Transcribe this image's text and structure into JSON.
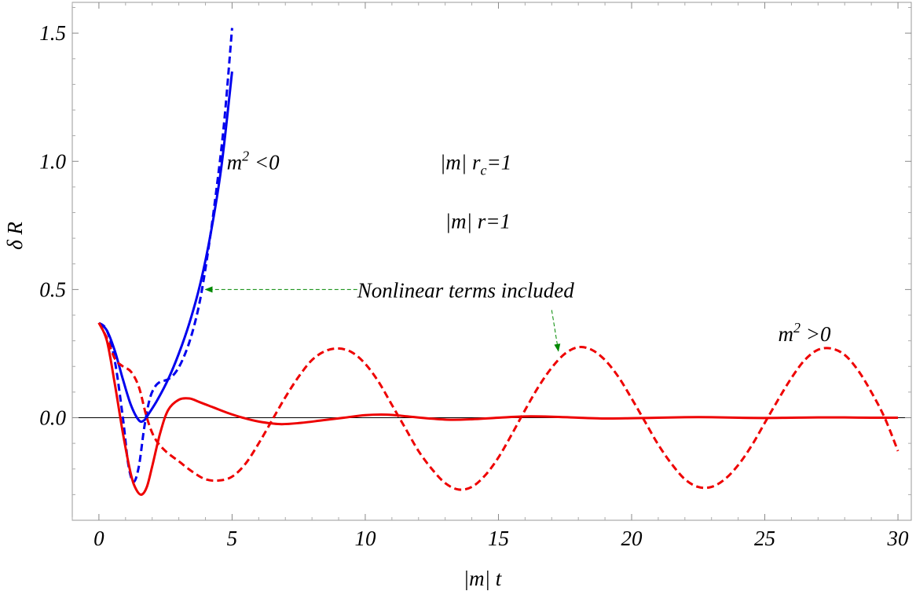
{
  "chart_data": {
    "type": "line",
    "xlabel": "|m| t",
    "ylabel": "δ R",
    "xlim": [
      -1,
      30.5
    ],
    "ylim": [
      -0.4,
      1.62
    ],
    "xticks": [
      0,
      5,
      10,
      15,
      20,
      25,
      30
    ],
    "xtick_labels": [
      "0",
      "5",
      "10",
      "15",
      "20",
      "25",
      "30"
    ],
    "yticks": [
      0.0,
      0.5,
      1.0,
      1.5
    ],
    "ytick_labels": [
      "0.0",
      "0.5",
      "1.0",
      "1.5"
    ],
    "grid": false,
    "zero_line": true,
    "series": [
      {
        "color": "#0000ee",
        "dash": "solid",
        "x": [
          0,
          0.3,
          0.6,
          0.9,
          1.2,
          1.5,
          1.7,
          1.9,
          2.2,
          2.6,
          3.0,
          3.4,
          3.8,
          4.2,
          4.6,
          5.0
        ],
        "y": [
          0.37,
          0.34,
          0.26,
          0.15,
          0.05,
          -0.01,
          -0.01,
          0.02,
          0.07,
          0.15,
          0.25,
          0.37,
          0.52,
          0.72,
          0.98,
          1.35
        ]
      },
      {
        "color": "#0000ee",
        "dash": "dashed",
        "x": [
          0,
          0.3,
          0.6,
          0.9,
          1.1,
          1.3,
          1.5,
          1.7,
          1.9,
          2.1,
          2.3,
          2.6,
          2.9,
          3.2,
          3.5,
          3.8,
          4.1,
          4.4,
          4.7,
          5.0
        ],
        "y": [
          0.37,
          0.34,
          0.22,
          0.0,
          -0.18,
          -0.25,
          -0.19,
          -0.04,
          0.07,
          0.12,
          0.14,
          0.15,
          0.18,
          0.24,
          0.33,
          0.46,
          0.65,
          0.88,
          1.15,
          1.52
        ]
      },
      {
        "color": "#ee0000",
        "dash": "solid",
        "x": [
          0,
          0.3,
          0.6,
          0.9,
          1.2,
          1.4,
          1.6,
          1.8,
          2.0,
          2.3,
          2.6,
          3.0,
          3.4,
          3.8,
          4.3,
          4.8,
          5.4,
          6.0,
          6.8,
          7.6,
          8.4,
          9.2,
          10.0,
          10.8,
          11.6,
          12.4,
          13.2,
          14.0,
          15.0,
          16.0,
          17.0,
          18.0,
          19.0,
          20.0,
          21.0,
          22.0,
          23.0,
          24.0,
          25.0,
          26.0,
          27.0,
          28.0,
          29.0,
          30.0
        ],
        "y": [
          0.37,
          0.3,
          0.13,
          -0.06,
          -0.22,
          -0.28,
          -0.3,
          -0.27,
          -0.19,
          -0.06,
          0.03,
          0.07,
          0.075,
          0.06,
          0.04,
          0.02,
          0.0,
          -0.015,
          -0.025,
          -0.02,
          -0.01,
          0.0,
          0.01,
          0.012,
          0.005,
          -0.003,
          -0.008,
          -0.006,
          0.0,
          0.005,
          0.004,
          0.0,
          -0.003,
          -0.002,
          0.0,
          0.002,
          0.002,
          0.0,
          -0.001,
          0.0,
          0.001,
          0.001,
          0.0,
          0.0
        ]
      },
      {
        "color": "#ee0000",
        "dash": "dashed",
        "x": [
          0,
          0.3,
          0.6,
          0.9,
          1.2,
          1.5,
          1.8,
          2.1,
          2.5,
          3.0,
          3.5,
          4.0,
          4.5,
          5.0,
          5.5,
          6.0,
          6.5,
          7.0,
          7.5,
          8.0,
          8.5,
          9.0,
          9.5,
          10.0,
          10.5,
          11.0,
          11.5,
          12.0,
          12.5,
          13.0,
          13.5,
          14.0,
          14.5,
          15.0,
          15.5,
          16.0,
          16.5,
          17.0,
          17.5,
          18.0,
          18.5,
          19.0,
          19.5,
          20.0,
          20.5,
          21.0,
          21.5,
          22.0,
          22.5,
          23.0,
          23.5,
          24.0,
          24.5,
          25.0,
          25.5,
          26.0,
          26.5,
          27.0,
          27.5,
          28.0,
          28.5,
          29.0,
          29.5,
          30.0
        ],
        "y": [
          0.37,
          0.31,
          0.23,
          0.2,
          0.18,
          0.12,
          0.0,
          -0.08,
          -0.13,
          -0.17,
          -0.21,
          -0.24,
          -0.245,
          -0.23,
          -0.18,
          -0.1,
          -0.01,
          0.08,
          0.16,
          0.225,
          0.26,
          0.27,
          0.255,
          0.21,
          0.14,
          0.05,
          -0.04,
          -0.13,
          -0.2,
          -0.255,
          -0.28,
          -0.27,
          -0.225,
          -0.155,
          -0.065,
          0.03,
          0.12,
          0.195,
          0.25,
          0.275,
          0.265,
          0.225,
          0.16,
          0.075,
          -0.015,
          -0.105,
          -0.18,
          -0.24,
          -0.27,
          -0.27,
          -0.24,
          -0.185,
          -0.11,
          -0.02,
          0.07,
          0.155,
          0.225,
          0.265,
          0.27,
          0.245,
          0.185,
          0.1,
          0.0,
          -0.13
        ]
      }
    ],
    "annotations": {
      "m2_neg": {
        "base": "m",
        "sup": "2",
        "rest": " <0",
        "at": [
          4.8,
          1.0
        ]
      },
      "m2_pos": {
        "base": "m",
        "sup": "2",
        "rest": " >0",
        "at": [
          25.5,
          0.33
        ]
      },
      "rc": {
        "pre": "|m| r",
        "sub": "c",
        "post": "=1",
        "at": [
          12.8,
          1.0
        ]
      },
      "r": {
        "text": "|m| r=1",
        "at": [
          13.0,
          0.77
        ]
      },
      "nonlinear": {
        "text": "Nonlinear terms included",
        "at": [
          9.7,
          0.5
        ]
      }
    },
    "arrows": [
      {
        "from": [
          9.7,
          0.5
        ],
        "to": [
          4.0,
          0.5
        ],
        "color": "#008800"
      },
      {
        "from": [
          17.0,
          0.42
        ],
        "to": [
          17.25,
          0.26
        ],
        "color": "#008800"
      }
    ]
  }
}
